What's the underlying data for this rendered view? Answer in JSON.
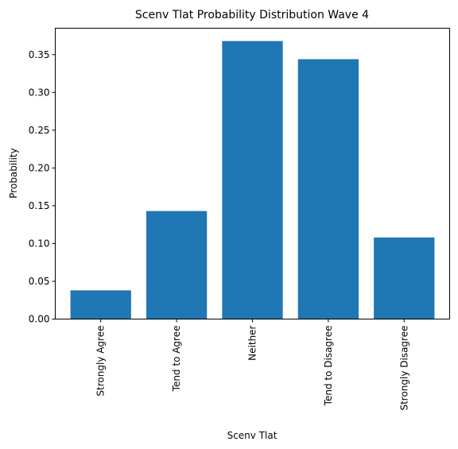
{
  "chart_data": {
    "type": "bar",
    "title": "Scenv Tlat Probability Distribution Wave 4",
    "xlabel": "Scenv Tlat",
    "ylabel": "Probability",
    "categories": [
      "Strongly Agree",
      "Tend to Agree",
      "Neither",
      "Tend to Disagree",
      "Strongly Disagree"
    ],
    "values": [
      0.038,
      0.143,
      0.368,
      0.344,
      0.108
    ],
    "ylim": [
      0,
      0.385
    ],
    "yticks": [
      0.0,
      0.05,
      0.1,
      0.15,
      0.2,
      0.25,
      0.3,
      0.35
    ],
    "ytick_labels": [
      "0.00",
      "0.05",
      "0.10",
      "0.15",
      "0.20",
      "0.25",
      "0.30",
      "0.35"
    ],
    "bar_color": "#1f77b4",
    "grid": false,
    "legend": "none"
  }
}
